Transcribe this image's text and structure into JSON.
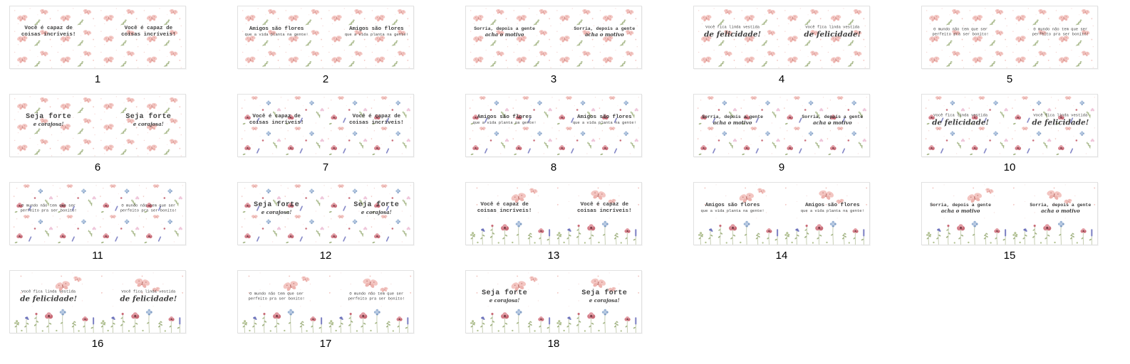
{
  "page": {
    "description": "Numbered contact sheet of 18 floral mug-wrap design thumbnails",
    "background": "#ffffff",
    "grid": {
      "columns": 5,
      "rows": 4,
      "item_count": 18
    }
  },
  "palette": {
    "card_background": "#ffffff",
    "card_border": "#e1e1e1",
    "text_color": "#3f3f3f",
    "number_color": "#000000",
    "butterfly_pink": "#f3c5c1",
    "butterfly_pink_dark": "#edb3ae",
    "butterfly_body": "#c9827d",
    "sprig_green": "#9fb27c",
    "leaf_green": "#a3b584",
    "stem_green": "#b8c2a0",
    "bud_green": "#b2c292",
    "dot_pink": "#f2cdc9",
    "heart_pink": "#f0bcb6",
    "poppy_pink": "#d5808b",
    "poppy_red": "#c96b77",
    "poppy_light": "#e29ba3",
    "poppy_center": "#7c3f49",
    "cornflower_blue": "#9db6d6",
    "cornflower_blue_dark": "#86a2c7",
    "cornflower_blue_light": "#b7c9e2",
    "lavender_purple": "#7c80c3",
    "violet": "#6f74bd",
    "clover_pink": "#eec3d8"
  },
  "designs": {
    "butterflies": {
      "label": "pink butterflies with green sprigs, dots and hearts on white"
    },
    "wildflowers": {
      "label": "scattered watercolor wildflowers, butterflies and hearts on white"
    },
    "meadow": {
      "label": "flower meadow along bottom edge with butterflies and hearts above"
    }
  },
  "phrases": [
    {
      "line1": {
        "text": "Você é capaz de",
        "font": "typewriter",
        "size": "md"
      },
      "line2": {
        "text": "coisas incríveis!",
        "font": "typewriter",
        "size": "md"
      }
    },
    {
      "line1": {
        "text": "Amigos são flores",
        "font": "typewriter",
        "size": "md"
      },
      "line2": {
        "text": "que a vida planta na gente!",
        "font": "typewriter",
        "size": "xs"
      }
    },
    {
      "line1": {
        "text": "Sorria, depois a gente",
        "font": "typewriter",
        "size": "sm"
      },
      "line2": {
        "text": "acha o motivo",
        "font": "script",
        "size": "sm"
      }
    },
    {
      "line1": {
        "text": "Você fica linda vestida",
        "font": "typewriter",
        "size": "xs"
      },
      "line2": {
        "text": "de felicidade!",
        "font": "script",
        "size": "lg"
      }
    },
    {
      "line1": {
        "text": "O mundo não tem que ser",
        "font": "typewriter",
        "size": "xs"
      },
      "line2": {
        "text": "perfeito pra ser bonito!",
        "font": "typewriter",
        "size": "xs"
      }
    },
    {
      "line1": {
        "text": "Seja forte",
        "font": "typewriter",
        "size": "lg"
      },
      "line2": {
        "text": "e corajosa!",
        "font": "script",
        "size": "sm"
      }
    }
  ],
  "thumbnails": [
    {
      "number": "1",
      "design": "butterflies",
      "phrase": 0
    },
    {
      "number": "2",
      "design": "butterflies",
      "phrase": 1
    },
    {
      "number": "3",
      "design": "butterflies",
      "phrase": 2
    },
    {
      "number": "4",
      "design": "butterflies",
      "phrase": 3
    },
    {
      "number": "5",
      "design": "butterflies",
      "phrase": 4
    },
    {
      "number": "6",
      "design": "butterflies",
      "phrase": 5
    },
    {
      "number": "7",
      "design": "wildflowers",
      "phrase": 0
    },
    {
      "number": "8",
      "design": "wildflowers",
      "phrase": 1
    },
    {
      "number": "9",
      "design": "wildflowers",
      "phrase": 2
    },
    {
      "number": "10",
      "design": "wildflowers",
      "phrase": 3
    },
    {
      "number": "11",
      "design": "wildflowers",
      "phrase": 4
    },
    {
      "number": "12",
      "design": "wildflowers",
      "phrase": 5
    },
    {
      "number": "13",
      "design": "meadow",
      "phrase": 0
    },
    {
      "number": "14",
      "design": "meadow",
      "phrase": 1
    },
    {
      "number": "15",
      "design": "meadow",
      "phrase": 2
    },
    {
      "number": "16",
      "design": "meadow",
      "phrase": 3
    },
    {
      "number": "17",
      "design": "meadow",
      "phrase": 4
    },
    {
      "number": "18",
      "design": "meadow",
      "phrase": 5
    }
  ]
}
